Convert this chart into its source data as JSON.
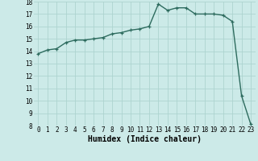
{
  "x_values": [
    0,
    1,
    2,
    3,
    4,
    5,
    6,
    7,
    8,
    9,
    10,
    11,
    12,
    13,
    14,
    15,
    16,
    17,
    18,
    19,
    20,
    21,
    22,
    23
  ],
  "y_values": [
    13.8,
    14.1,
    14.2,
    14.7,
    14.9,
    14.9,
    15.0,
    15.1,
    15.4,
    15.5,
    15.7,
    15.8,
    16.0,
    17.8,
    17.3,
    17.5,
    17.5,
    17.0,
    17.0,
    17.0,
    16.9,
    16.4,
    10.4,
    8.1
  ],
  "line_color": "#2d6b5e",
  "marker": "+",
  "marker_size": 3.5,
  "background_color": "#cceae8",
  "grid_color": "#add4d0",
  "xlabel": "Humidex (Indice chaleur)",
  "ylim": [
    8,
    18
  ],
  "xlim_min": -0.5,
  "xlim_max": 23.5,
  "yticks": [
    8,
    9,
    10,
    11,
    12,
    13,
    14,
    15,
    16,
    17,
    18
  ],
  "xticks": [
    0,
    1,
    2,
    3,
    4,
    5,
    6,
    7,
    8,
    9,
    10,
    11,
    12,
    13,
    14,
    15,
    16,
    17,
    18,
    19,
    20,
    21,
    22,
    23
  ],
  "tick_fontsize": 5.5,
  "xlabel_fontsize": 7,
  "line_width": 1.0,
  "marker_edge_width": 0.9
}
